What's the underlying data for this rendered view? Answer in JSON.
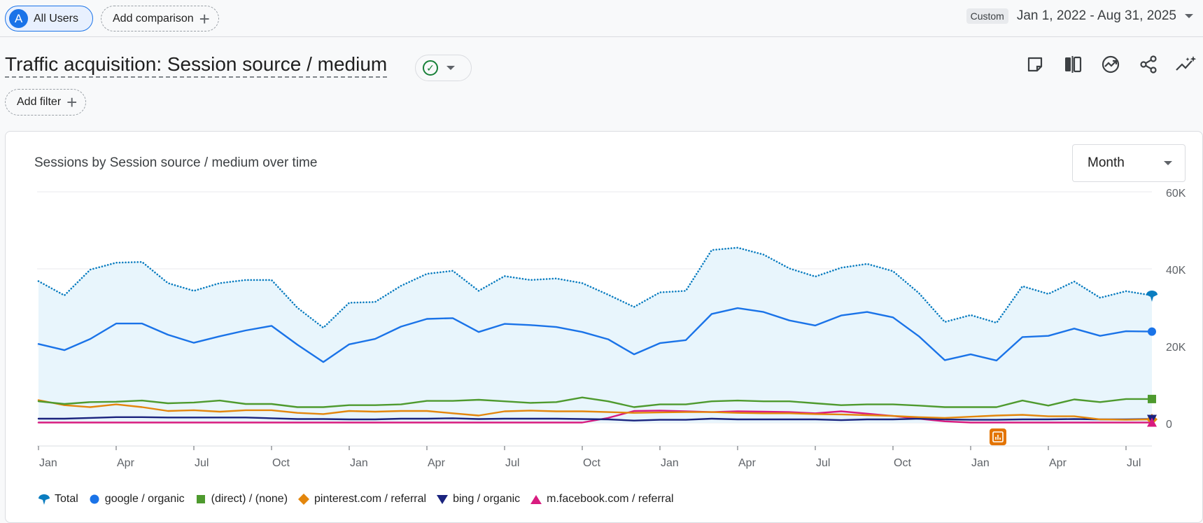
{
  "header": {
    "segment_initial": "A",
    "segment_label": "All Users",
    "add_comparison_label": "Add comparison",
    "date_badge": "Custom",
    "date_range": "Jan 1, 2022 - Aug 31, 2025"
  },
  "page": {
    "title": "Traffic acquisition: Session source / medium",
    "add_filter_label": "Add filter"
  },
  "toolbar": {
    "icons": [
      "note-icon",
      "compare-icon",
      "insights-icon",
      "share-icon",
      "trend-icon"
    ]
  },
  "card": {
    "title": "Sessions by Session source / medium over time",
    "granularity": "Month"
  },
  "chart_data": {
    "type": "line",
    "title": "Sessions by Session source / medium over time",
    "x": [
      "2022-01",
      "2022-02",
      "2022-03",
      "2022-04",
      "2022-05",
      "2022-06",
      "2022-07",
      "2022-08",
      "2022-09",
      "2022-10",
      "2022-11",
      "2022-12",
      "2023-01",
      "2023-02",
      "2023-03",
      "2023-04",
      "2023-05",
      "2023-06",
      "2023-07",
      "2023-08",
      "2023-09",
      "2023-10",
      "2023-11",
      "2023-12",
      "2024-01",
      "2024-02",
      "2024-03",
      "2024-04",
      "2024-05",
      "2024-06",
      "2024-07",
      "2024-08",
      "2024-09",
      "2024-10",
      "2024-11",
      "2024-12",
      "2025-01",
      "2025-02",
      "2025-03",
      "2025-04",
      "2025-05",
      "2025-06",
      "2025-07",
      "2025-08"
    ],
    "x_tick_labels": [
      "Jan",
      "Apr",
      "Jul",
      "Oct",
      "Jan",
      "Apr",
      "Jul",
      "Oct",
      "Jan",
      "Apr",
      "Jul",
      "Oct",
      "Jan",
      "Apr",
      "Jul"
    ],
    "x_tick_dates": [
      "2022-01",
      "2022-04",
      "2022-07",
      "2022-10",
      "2023-01",
      "2023-04",
      "2023-07",
      "2023-10",
      "2024-01",
      "2024-04",
      "2024-07",
      "2024-10",
      "2025-01",
      "2025-04",
      "2025-07"
    ],
    "y_ticks": [
      0,
      20000,
      40000,
      60000
    ],
    "y_tick_labels": [
      "0",
      "20K",
      "40K",
      "60K"
    ],
    "ylim": [
      -6000,
      60000
    ],
    "grid": true,
    "y_axis_side": "right",
    "legend_position": "bottom",
    "annotation_month": "2025-02",
    "series": [
      {
        "name": "Total",
        "color": "#0b7dc0",
        "marker": "pin",
        "style": "dotted",
        "fill": "#e8f5fc",
        "values": [
          36800,
          33100,
          39800,
          41600,
          41800,
          36300,
          34300,
          36300,
          37100,
          37100,
          29900,
          24700,
          31200,
          31400,
          35600,
          38700,
          39500,
          34300,
          38100,
          37100,
          37500,
          36300,
          33300,
          30100,
          33900,
          34300,
          44900,
          45500,
          43700,
          40100,
          38000,
          40300,
          41300,
          39400,
          33700,
          26200,
          28000,
          26000,
          35500,
          33500,
          36700,
          32500,
          34200,
          33100
        ]
      },
      {
        "name": "google / organic",
        "color": "#1a73e8",
        "marker": "circle",
        "style": "solid",
        "values": [
          20500,
          18900,
          21800,
          25800,
          25800,
          22900,
          20800,
          22500,
          24000,
          25200,
          20300,
          15800,
          20400,
          21800,
          25000,
          27000,
          27200,
          23600,
          25700,
          25400,
          24900,
          23600,
          21700,
          17800,
          20700,
          21500,
          28300,
          29800,
          28800,
          26600,
          25300,
          27900,
          28800,
          27400,
          22500,
          16300,
          17800,
          16200,
          22300,
          22600,
          24500,
          22600,
          23800,
          23700
        ]
      },
      {
        "name": "(direct) / (none)",
        "color": "#4e9a2e",
        "marker": "square",
        "style": "solid",
        "values": [
          5600,
          4900,
          5400,
          5500,
          5800,
          5100,
          5300,
          5800,
          4900,
          4900,
          4100,
          4100,
          4600,
          4600,
          4800,
          5700,
          5700,
          6000,
          5600,
          5200,
          5400,
          6600,
          5600,
          4100,
          4800,
          4800,
          5600,
          5800,
          5600,
          5600,
          5100,
          4600,
          4800,
          4800,
          4500,
          4100,
          4100,
          4100,
          5800,
          4500,
          6100,
          5400,
          6200,
          6200
        ]
      },
      {
        "name": "pinterest.com / referral",
        "color": "#e3860c",
        "marker": "diamond",
        "style": "solid",
        "values": [
          5900,
          4600,
          4100,
          4800,
          4100,
          3100,
          3300,
          2900,
          3300,
          3300,
          2600,
          2300,
          3100,
          2900,
          3100,
          3100,
          2500,
          1900,
          3000,
          3200,
          3000,
          3000,
          2800,
          2600,
          2700,
          2800,
          2800,
          2600,
          2500,
          2500,
          2300,
          2200,
          2000,
          1800,
          1500,
          1300,
          1600,
          1900,
          2100,
          1700,
          1700,
          900,
          800,
          900
        ]
      },
      {
        "name": "bing / organic",
        "color": "#1a237e",
        "marker": "triangle-down",
        "style": "solid",
        "values": [
          1100,
          1100,
          1300,
          1500,
          1500,
          1400,
          1400,
          1400,
          1400,
          1200,
          1000,
          1000,
          900,
          900,
          1100,
          1100,
          1200,
          1000,
          1100,
          1100,
          1100,
          1000,
          900,
          600,
          800,
          800,
          1100,
          900,
          900,
          900,
          900,
          700,
          900,
          900,
          1100,
          900,
          800,
          800,
          900,
          900,
          1000,
          900,
          900,
          1000
        ]
      },
      {
        "name": "m.facebook.com / referral",
        "color": "#d81b7f",
        "marker": "triangle-up",
        "style": "solid",
        "values": [
          100,
          100,
          100,
          100,
          100,
          100,
          100,
          100,
          100,
          100,
          100,
          100,
          100,
          100,
          100,
          100,
          100,
          100,
          100,
          100,
          100,
          100,
          1300,
          3100,
          3200,
          3000,
          2800,
          3000,
          2900,
          2800,
          2500,
          3000,
          2400,
          1800,
          1100,
          400,
          100,
          100,
          100,
          100,
          100,
          100,
          100,
          100
        ]
      }
    ]
  }
}
